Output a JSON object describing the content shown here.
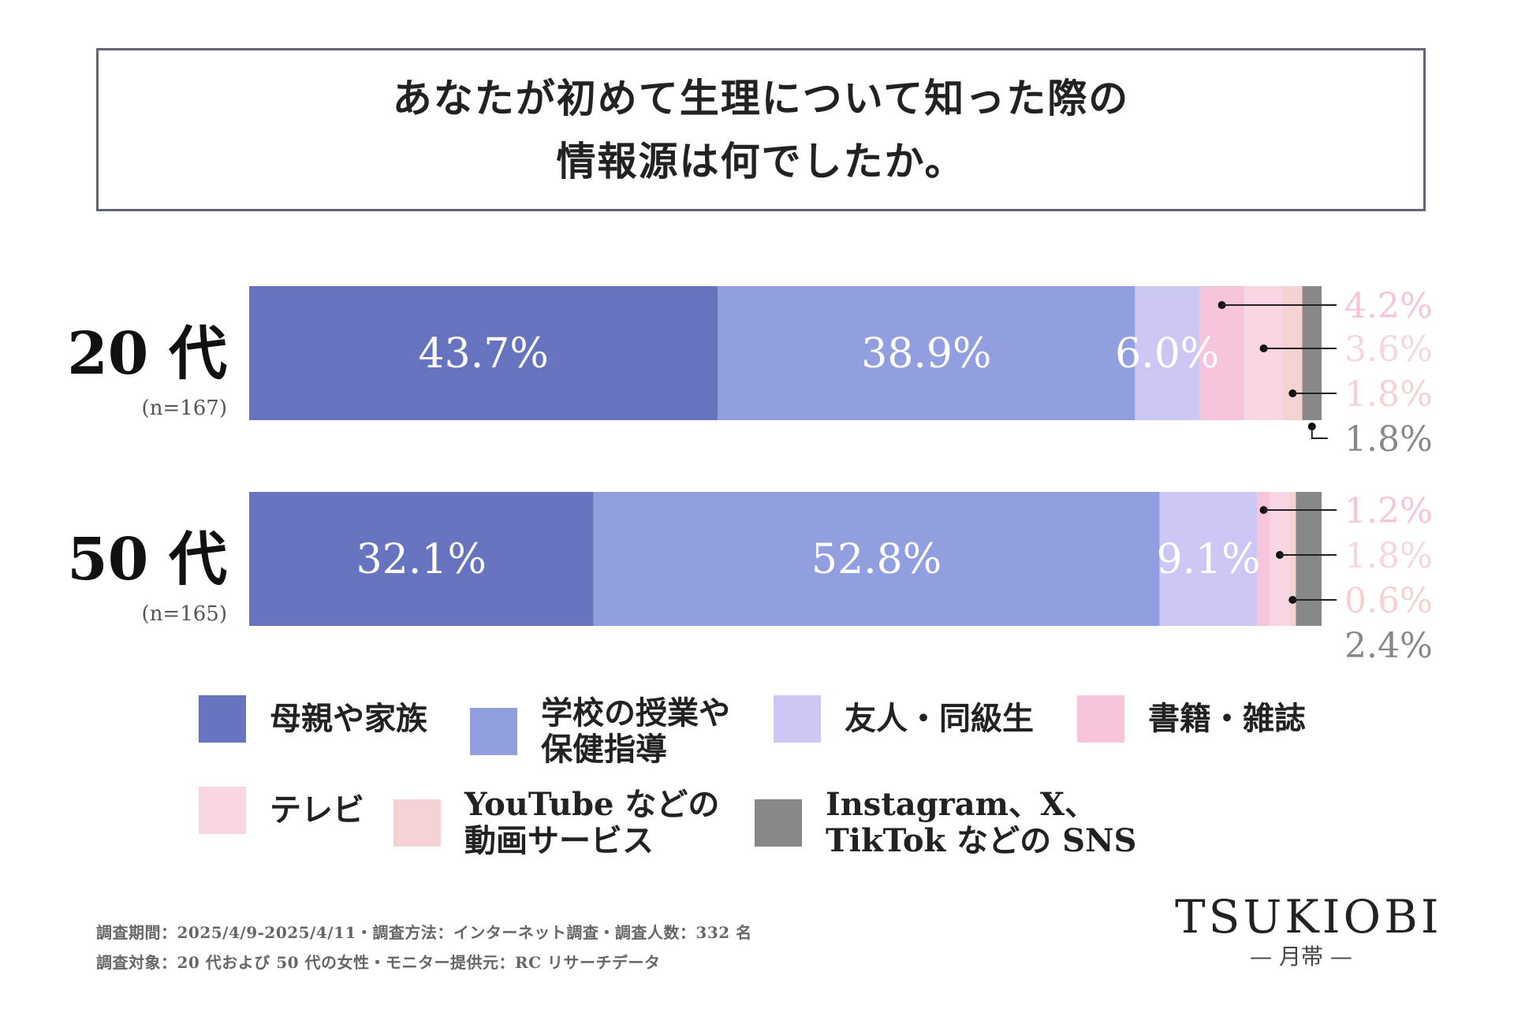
{
  "title": {
    "line1": "あなたが初めて生理について知った際の",
    "line2": "情報源は何でしたか。"
  },
  "chart_data": {
    "type": "bar",
    "stacked": true,
    "orientation": "horizontal",
    "categories": [
      "20 代",
      "50 代"
    ],
    "sample_sizes": [
      "(n=167)",
      "(n=165)"
    ],
    "series": [
      {
        "name": "母親や家族",
        "color": "#6674bf",
        "values": [
          43.7,
          32.1
        ],
        "labels": [
          "43.7%",
          "32.1%"
        ]
      },
      {
        "name": "学校の授業や\n保健指導",
        "color": "#919fe0",
        "values": [
          38.9,
          52.8
        ],
        "labels": [
          "38.9%",
          "52.8%"
        ]
      },
      {
        "name": "友人・同級生",
        "color": "#cac7f5",
        "values": [
          6.0,
          9.1
        ],
        "labels": [
          "6.0%",
          "9.1%"
        ]
      },
      {
        "name": "書籍・雑誌",
        "color": "#f8c4dc",
        "values": [
          4.2,
          1.2
        ],
        "labels": [
          "4.2%",
          "1.2%"
        ]
      },
      {
        "name": "テレビ",
        "color": "#f8d5e2",
        "values": [
          3.6,
          1.8
        ],
        "labels": [
          "3.6%",
          "1.8%"
        ]
      },
      {
        "name": "YouTube などの\n動画サービス",
        "color": "#f5d2d2",
        "values": [
          1.8,
          0.6
        ],
        "labels": [
          "1.8%",
          "0.6%"
        ]
      },
      {
        "name": "Instagram、X、\nTikTok などの SNS",
        "color": "#888888",
        "values": [
          1.8,
          2.4
        ],
        "labels": [
          "1.8%",
          "2.4%"
        ]
      }
    ],
    "xlim": [
      0,
      100
    ],
    "legend_position": "bottom",
    "grid": false
  },
  "footnotes": {
    "line1": "調査期間：2025/4/9-2025/4/11・調査方法：インターネット調査・調査人数：332 名",
    "line2": "調査対象：20 代および 50 代の女性・モニター提供元：RC リサーチデータ"
  },
  "brand": {
    "name": "TSUKIOBI",
    "sub": "— 月帯 —"
  },
  "colors": {
    "border": "#5f6670",
    "text": "#222222",
    "muted": "#666666"
  }
}
